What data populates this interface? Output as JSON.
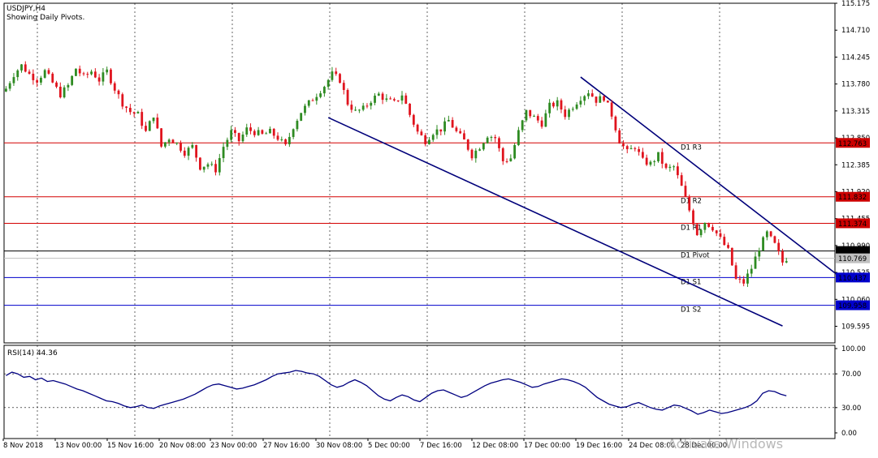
{
  "chart_data": {
    "type": "candlestick",
    "symbol_header": "USDJPY,H4",
    "subtitle": "Showing Daily Pivots.",
    "colors": {
      "bull": "#2e8b22",
      "bear": "#e0141e",
      "resistance": "#d40000",
      "support": "#0000cc",
      "pivot": "#000000",
      "trendline": "#00007a",
      "rsi": "#000080",
      "grid": "#000000"
    },
    "price_axis": {
      "ylim": [
        109.35,
        115.175
      ],
      "ticks": [
        "115.175",
        "114.710",
        "114.245",
        "113.780",
        "113.315",
        "112.850",
        "112.385",
        "111.920",
        "111.455",
        "110.990",
        "110.525",
        "110.060",
        "109.595"
      ]
    },
    "time_axis": {
      "labels": [
        "8 Nov 2018",
        "13 Nov 00:00",
        "15 Nov 16:00",
        "20 Nov 08:00",
        "23 Nov 00:00",
        "27 Nov 16:00",
        "30 Nov 08:00",
        "5 Dec 00:00",
        "7 Dec 16:00",
        "12 Dec 08:00",
        "17 Dec 00:00",
        "19 Dec 16:00",
        "24 Dec 08:00",
        "28 Dec 00:00"
      ]
    },
    "pivot_levels": [
      {
        "name": "D1 R3",
        "value": 112.763,
        "price_label": "112.763",
        "kind": "resistance"
      },
      {
        "name": "D1 R2",
        "value": 111.832,
        "price_label": "111.832",
        "kind": "resistance"
      },
      {
        "name": "D1 R1",
        "value": 111.374,
        "price_label": "111.374",
        "kind": "resistance"
      },
      {
        "name": "D1 Pivot",
        "value": 110.895,
        "price_label": "110.895",
        "kind": "pivot"
      },
      {
        "name": "D1 S1",
        "value": 110.437,
        "price_label": "110.437",
        "kind": "support"
      },
      {
        "name": "D1 S2",
        "value": 109.958,
        "price_label": "109.958",
        "kind": "support"
      }
    ],
    "current_price": {
      "value": 110.769,
      "label": "110.769"
    },
    "close_path": [
      [
        0,
        113.7
      ],
      [
        2,
        113.95
      ],
      [
        4,
        114.1
      ],
      [
        6,
        113.95
      ],
      [
        8,
        113.85
      ],
      [
        10,
        114.0
      ],
      [
        12,
        113.8
      ],
      [
        14,
        113.6
      ],
      [
        16,
        113.75
      ],
      [
        18,
        114.05
      ],
      [
        20,
        113.9
      ],
      [
        22,
        114.0
      ],
      [
        24,
        113.85
      ],
      [
        26,
        114.0
      ],
      [
        28,
        113.7
      ],
      [
        30,
        113.45
      ],
      [
        32,
        113.3
      ],
      [
        34,
        113.25
      ],
      [
        36,
        112.95
      ],
      [
        38,
        113.25
      ],
      [
        40,
        112.7
      ],
      [
        42,
        112.85
      ],
      [
        44,
        112.75
      ],
      [
        46,
        112.6
      ],
      [
        48,
        112.7
      ],
      [
        50,
        112.35
      ],
      [
        52,
        112.4
      ],
      [
        54,
        112.3
      ],
      [
        56,
        112.7
      ],
      [
        58,
        112.95
      ],
      [
        60,
        112.8
      ],
      [
        62,
        113.0
      ],
      [
        64,
        112.95
      ],
      [
        66,
        112.9
      ],
      [
        68,
        112.95
      ],
      [
        70,
        112.85
      ],
      [
        72,
        112.7
      ],
      [
        74,
        113.05
      ],
      [
        76,
        113.3
      ],
      [
        78,
        113.45
      ],
      [
        80,
        113.6
      ],
      [
        82,
        113.75
      ],
      [
        84,
        113.95
      ],
      [
        86,
        113.85
      ],
      [
        88,
        113.45
      ],
      [
        90,
        113.3
      ],
      [
        92,
        113.35
      ],
      [
        94,
        113.5
      ],
      [
        96,
        113.6
      ],
      [
        98,
        113.5
      ],
      [
        100,
        113.45
      ],
      [
        102,
        113.6
      ],
      [
        104,
        113.25
      ],
      [
        106,
        112.95
      ],
      [
        108,
        112.8
      ],
      [
        110,
        112.95
      ],
      [
        112,
        113.0
      ],
      [
        114,
        113.15
      ],
      [
        116,
        112.95
      ],
      [
        118,
        112.8
      ],
      [
        120,
        112.55
      ],
      [
        122,
        112.7
      ],
      [
        124,
        112.9
      ],
      [
        126,
        112.85
      ],
      [
        128,
        112.45
      ],
      [
        130,
        112.5
      ],
      [
        132,
        112.95
      ],
      [
        134,
        113.3
      ],
      [
        136,
        113.2
      ],
      [
        138,
        113.1
      ],
      [
        140,
        113.4
      ],
      [
        142,
        113.45
      ],
      [
        144,
        113.25
      ],
      [
        146,
        113.4
      ],
      [
        148,
        113.55
      ],
      [
        150,
        113.65
      ],
      [
        152,
        113.5
      ],
      [
        154,
        113.55
      ],
      [
        156,
        113.25
      ],
      [
        158,
        112.8
      ],
      [
        160,
        112.6
      ],
      [
        162,
        112.7
      ],
      [
        164,
        112.45
      ],
      [
        166,
        112.4
      ],
      [
        168,
        112.55
      ],
      [
        170,
        112.3
      ],
      [
        172,
        112.35
      ],
      [
        174,
        112.0
      ],
      [
        176,
        111.6
      ],
      [
        178,
        111.2
      ],
      [
        180,
        111.4
      ],
      [
        182,
        111.3
      ],
      [
        184,
        111.1
      ],
      [
        186,
        110.9
      ],
      [
        188,
        110.4
      ],
      [
        190,
        110.35
      ],
      [
        192,
        110.6
      ],
      [
        194,
        110.95
      ],
      [
        196,
        111.2
      ],
      [
        198,
        111.0
      ],
      [
        200,
        110.7
      ],
      [
        201,
        110.769
      ]
    ],
    "trendlines": [
      {
        "name": "upper-channel",
        "from": [
          148,
          113.9
        ],
        "to": [
          214,
          110.49
        ]
      },
      {
        "name": "lower-channel",
        "from": [
          83,
          113.2
        ],
        "to": [
          200,
          109.6
        ]
      }
    ],
    "rsi": {
      "label": "RSI(14) 44.36",
      "ylim": [
        0,
        100
      ],
      "ticks": [
        "100.00",
        "70.00",
        "30.00",
        "0.00"
      ],
      "levels": [
        70,
        30
      ],
      "values": [
        68,
        72,
        70,
        66,
        67,
        63,
        65,
        61,
        62,
        60,
        58,
        55,
        52,
        50,
        47,
        44,
        41,
        38,
        37,
        35,
        32,
        30,
        31,
        33,
        30,
        29,
        32,
        34,
        36,
        38,
        40,
        43,
        46,
        50,
        54,
        57,
        58,
        56,
        54,
        52,
        53,
        55,
        57,
        60,
        63,
        67,
        70,
        71,
        72,
        74,
        73,
        71,
        70,
        67,
        62,
        57,
        54,
        56,
        60,
        63,
        60,
        56,
        50,
        44,
        40,
        38,
        42,
        45,
        43,
        39,
        37,
        42,
        47,
        50,
        51,
        48,
        45,
        42,
        44,
        48,
        52,
        56,
        59,
        61,
        63,
        64,
        62,
        60,
        57,
        54,
        55,
        58,
        60,
        62,
        64,
        63,
        61,
        58,
        54,
        48,
        42,
        38,
        34,
        32,
        30,
        31,
        34,
        36,
        33,
        30,
        28,
        27,
        30,
        33,
        32,
        29,
        26,
        22,
        24,
        27,
        25,
        23,
        24,
        26,
        28,
        30,
        33,
        38,
        47,
        50,
        49,
        46,
        44
      ]
    },
    "watermark": "Activate Windows"
  }
}
